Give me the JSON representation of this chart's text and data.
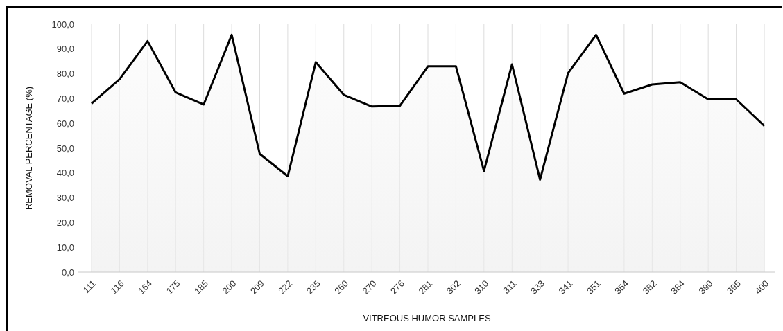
{
  "chart_data": {
    "type": "area",
    "xlabel": "VITREOUS HUMOR SAMPLES",
    "ylabel": "REMOVAL PERCENTAGE (%)",
    "categories": [
      "111",
      "116",
      "164",
      "175",
      "185",
      "200",
      "209",
      "222",
      "235",
      "260",
      "270",
      "276",
      "281",
      "302",
      "310",
      "311",
      "333",
      "341",
      "351",
      "354",
      "382",
      "384",
      "390",
      "395",
      "400"
    ],
    "series": [
      {
        "color": "#000000",
        "values": [
          68.0,
          77.8,
          93.2,
          72.5,
          67.6,
          95.7,
          47.7,
          38.7,
          84.7,
          71.5,
          66.8,
          67.1,
          83.0,
          83.0,
          40.8,
          83.8,
          37.3,
          80.3,
          95.7,
          72.0,
          75.7,
          76.6,
          69.7,
          69.7,
          59.0
        ]
      }
    ],
    "ylim": [
      0,
      100
    ],
    "yticks": [
      {
        "value": 0,
        "label": "0,0"
      },
      {
        "value": 10,
        "label": "10,0"
      },
      {
        "value": 20,
        "label": "20,0"
      },
      {
        "value": 30,
        "label": "30,0"
      },
      {
        "value": 40,
        "label": "40,0"
      },
      {
        "value": 50,
        "label": "50,0"
      },
      {
        "value": 60,
        "label": "60,0"
      },
      {
        "value": 70,
        "label": "70,0"
      },
      {
        "value": 80,
        "label": "80,0"
      },
      {
        "value": 90,
        "label": "90,0"
      },
      {
        "value": 100,
        "label": "100,0"
      }
    ],
    "grid": "x"
  }
}
